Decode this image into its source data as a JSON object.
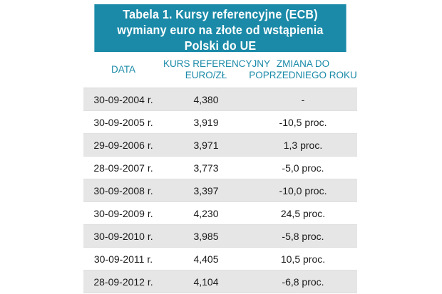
{
  "title": {
    "line1": "Tabela 1. Kursy referencyjne (ECB)",
    "line2": "wymiany euro na złote od wstąpienia",
    "line3": "Polski do UE"
  },
  "headers": {
    "date": "DATA",
    "rate_line1": "KURS REFERENCYJNY",
    "rate_line2": "EURO/ZŁ",
    "change_line1": "ZMIANA DO",
    "change_line2": "POPRZEDNIEGO ROKU"
  },
  "colors": {
    "accent": "#1a8aa8",
    "alt_row": "#e6e6e6"
  },
  "rows": [
    {
      "date": "30-09-2004 r.",
      "rate": "4,380",
      "change": "-"
    },
    {
      "date": "30-09-2005 r.",
      "rate": "3,919",
      "change": "-10,5 proc."
    },
    {
      "date": "29-09-2006 r.",
      "rate": "3,971",
      "change": "1,3 proc."
    },
    {
      "date": "28-09-2007 r.",
      "rate": "3,773",
      "change": "-5,0 proc."
    },
    {
      "date": "30-09-2008 r.",
      "rate": "3,397",
      "change": "-10,0 proc."
    },
    {
      "date": "30-09-2009 r.",
      "rate": "4,230",
      "change": "24,5 proc."
    },
    {
      "date": "30-09-2010 r.",
      "rate": "3,985",
      "change": "-5,8 proc."
    },
    {
      "date": "30-09-2011 r.",
      "rate": "4,405",
      "change": "10,5 proc."
    },
    {
      "date": "28-09-2012 r.",
      "rate": "4,104",
      "change": "-6,8 proc."
    }
  ]
}
